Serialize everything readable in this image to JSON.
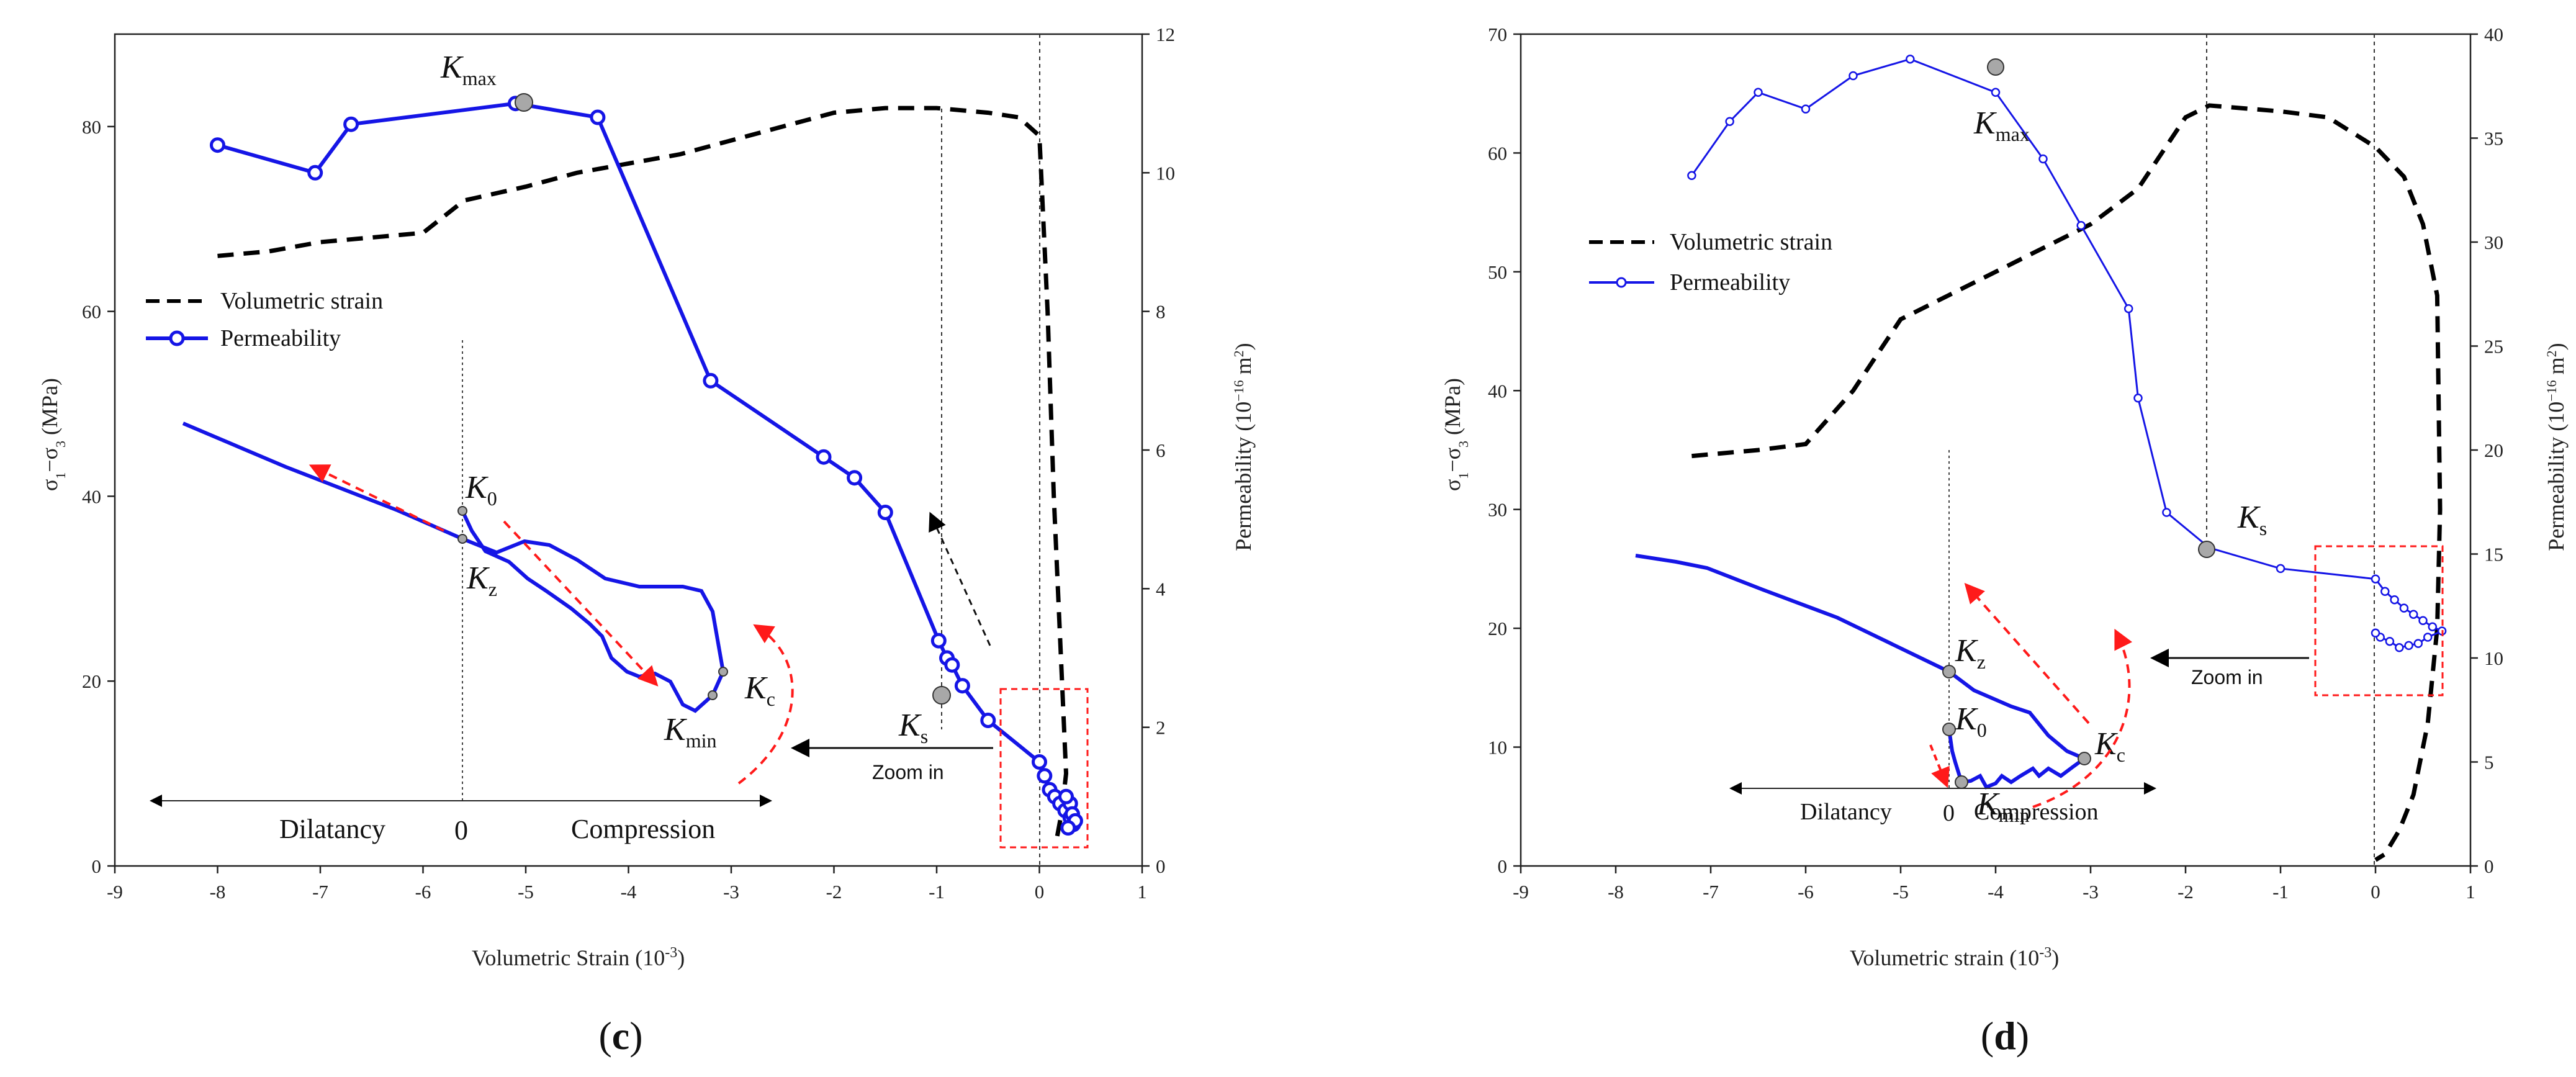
{
  "colors": {
    "permeability": "#1515e6",
    "volumetric": "#000000",
    "arrow_red": "#ff1a1a",
    "marker_fill": "#a8a8a8"
  },
  "captions": {
    "c_open": "(",
    "c_letter": "c",
    "c_close": ")",
    "d_open": "(",
    "d_letter": "d",
    "d_close": ")"
  },
  "chart_data": [
    {
      "panel": "c",
      "type": "line",
      "xlabel": "Volumetric Strain (10",
      "xlabel_sup": "-3",
      "xlabel_close": ")",
      "ylabel_left": "σ1−σ3 (MPa)",
      "ylabel_right": "Permeability (10-16 m2)",
      "xlim": [
        -9,
        1
      ],
      "ylim_left": [
        0,
        90
      ],
      "ylim_right": [
        0,
        12
      ],
      "x_ticks": [
        "-9",
        "-8",
        "-7",
        "-6",
        "-5",
        "-4",
        "-3",
        "-2",
        "-1",
        "0",
        "1"
      ],
      "y_left_ticks": [
        "0",
        "20",
        "40",
        "60",
        "80"
      ],
      "y_right_ticks": [
        "0",
        "2",
        "4",
        "6",
        "8",
        "10",
        "12"
      ],
      "legend": {
        "volumetric": "Volumetric strain",
        "permeability": "Permeability"
      },
      "series": [
        {
          "name": "Volumetric strain",
          "axis": "left",
          "x": [
            -8.0,
            -7.5,
            -7.0,
            -6.5,
            -6.0,
            -5.6,
            -5.0,
            -4.5,
            -4.0,
            -3.5,
            -3.0,
            -2.5,
            -2.0,
            -1.5,
            -1.0,
            -0.5,
            -0.2,
            0.0,
            0.08,
            0.14,
            0.2,
            0.24,
            0.26,
            0.22,
            0.17
          ],
          "y": [
            66,
            66.5,
            67.5,
            68,
            68.5,
            72,
            73.5,
            75,
            76,
            77,
            78.5,
            80,
            81.5,
            82,
            82,
            81.5,
            81,
            79,
            60,
            40,
            25,
            15,
            10,
            6,
            3
          ]
        },
        {
          "name": "Permeability",
          "axis": "right",
          "x": [
            -8.0,
            -7.05,
            -6.7,
            -5.1,
            -4.3,
            -3.2,
            -2.1,
            -1.8,
            -1.5,
            -0.98,
            -0.9,
            -0.85,
            -0.75,
            -0.5,
            0.0,
            0.05,
            0.1,
            0.15,
            0.2,
            0.25,
            0.3,
            0.33,
            0.3,
            0.26,
            0.32,
            0.35,
            0.28
          ],
          "y": [
            10.4,
            10.0,
            10.7,
            11.0,
            10.8,
            7.0,
            5.9,
            5.6,
            5.1,
            3.25,
            3.0,
            2.9,
            2.6,
            2.1,
            1.5,
            1.3,
            1.1,
            1.0,
            0.9,
            0.8,
            0.7,
            0.6,
            0.9,
            1.0,
            0.75,
            0.65,
            0.55
          ]
        }
      ],
      "annotations": {
        "kmax": "K",
        "kmax_sub": "max",
        "ks": "K",
        "ks_sub": "s",
        "zoom": "Zoom in"
      },
      "inset": {
        "k0": "K",
        "k0_sub": "0",
        "kz": "K",
        "kz_sub": "z",
        "kmin": "K",
        "kmin_sub": "min",
        "kc": "K",
        "kc_sub": "c",
        "dilatancy": "Dilatancy",
        "zero": "0",
        "compression": "Compression"
      }
    },
    {
      "panel": "d",
      "type": "line",
      "xlabel": "Volumetric strain (10",
      "xlabel_sup": "-3",
      "xlabel_close": ")",
      "ylabel_left": "σ1−σ3 (MPa)",
      "ylabel_right": "Permeability (10-16 m2)",
      "xlim": [
        -9,
        1
      ],
      "ylim_left": [
        0,
        70
      ],
      "ylim_right": [
        0,
        40
      ],
      "x_ticks": [
        "-9",
        "-8",
        "-7",
        "-6",
        "-5",
        "-4",
        "-3",
        "-2",
        "-1",
        "0",
        "1"
      ],
      "y_left_ticks": [
        "0",
        "10",
        "20",
        "30",
        "40",
        "50",
        "60",
        "70"
      ],
      "y_right_ticks": [
        "0",
        "5",
        "10",
        "15",
        "20",
        "25",
        "30",
        "35",
        "40"
      ],
      "legend": {
        "volumetric": "Volumetric strain",
        "permeability": "Permeability"
      },
      "series": [
        {
          "name": "Volumetric strain",
          "axis": "left",
          "x": [
            -7.2,
            -6.5,
            -6.0,
            -5.5,
            -5.0,
            -4.5,
            -4.0,
            -3.5,
            -3.0,
            -2.5,
            -2.0,
            -1.75,
            -1.0,
            -0.5,
            0.0,
            0.3,
            0.5,
            0.65,
            0.68,
            0.65,
            0.55,
            0.4,
            0.25,
            0.1,
            0.0
          ],
          "y": [
            34.5,
            35,
            35.5,
            40,
            46,
            48,
            50,
            52,
            54,
            57,
            63,
            64,
            63.5,
            63,
            60.5,
            58,
            54,
            48,
            30,
            20,
            12,
            6,
            3,
            1,
            0.5
          ]
        },
        {
          "name": "Permeability",
          "axis": "right",
          "x": [
            -7.2,
            -6.8,
            -6.5,
            -6.0,
            -5.5,
            -4.9,
            -4.0,
            -3.5,
            -3.1,
            -2.6,
            -2.5,
            -2.2,
            -1.75,
            -1.0,
            0.0,
            0.1,
            0.2,
            0.3,
            0.4,
            0.5,
            0.6,
            0.7,
            0.55,
            0.45,
            0.35,
            0.25,
            0.15,
            0.05,
            0.0
          ],
          "y": [
            33.2,
            35.8,
            37.2,
            36.4,
            38.0,
            38.8,
            37.2,
            34.0,
            30.8,
            26.8,
            22.5,
            17.0,
            15.3,
            14.3,
            13.8,
            13.2,
            12.8,
            12.4,
            12.1,
            11.8,
            11.5,
            11.3,
            11.0,
            10.7,
            10.6,
            10.5,
            10.8,
            11.0,
            11.2
          ]
        }
      ],
      "annotations": {
        "kmax": "K",
        "kmax_sub": "max",
        "ks": "K",
        "ks_sub": "s",
        "zoom": "Zoom in"
      },
      "inset": {
        "k0": "K",
        "k0_sub": "0",
        "kz": "K",
        "kz_sub": "z",
        "kmin": "K",
        "kmin_sub": "min",
        "kc": "K",
        "kc_sub": "c",
        "dilatancy": "Dilatancy",
        "zero": "0",
        "compression": "Compression"
      }
    }
  ]
}
